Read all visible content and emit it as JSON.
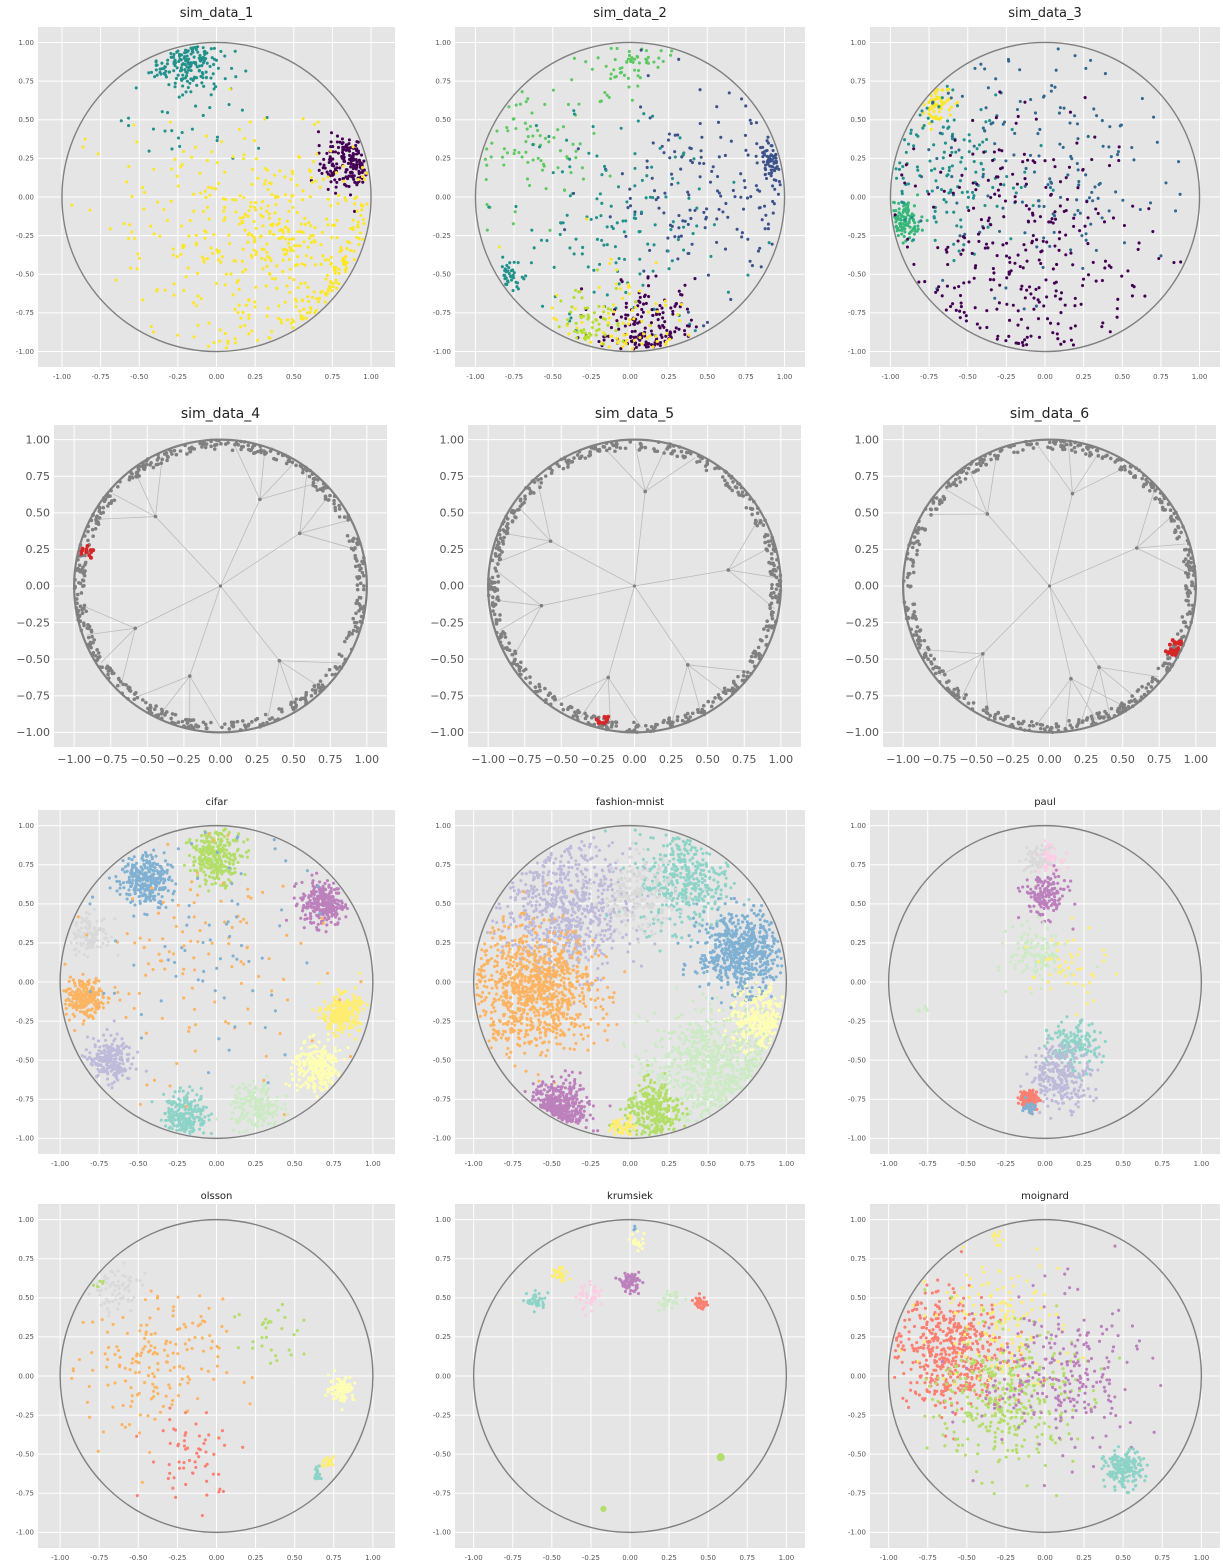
{
  "figure": {
    "background": "#ffffff",
    "panel_background": "#e5e5e5",
    "grid_color": "#ffffff",
    "circle_color": "#808080"
  },
  "chart_data": [
    {
      "title": "sim_data_1",
      "type": "scatter",
      "xlim": [
        -1.0,
        1.0
      ],
      "ylim": [
        -1.0,
        1.0
      ],
      "ticks": [
        "-1.00",
        "-0.75",
        "-0.50",
        "-0.25",
        "0.00",
        "0.25",
        "0.50",
        "0.75",
        "1.00"
      ],
      "grid": true,
      "boundary": "unit circle",
      "series": [
        {
          "color": "#440154",
          "center": [
            0.85,
            0.22
          ],
          "spread": 0.09,
          "count": 180
        },
        {
          "color": "#21918c",
          "center": [
            -0.18,
            0.86
          ],
          "spread": 0.1,
          "count": 160
        },
        {
          "color": "#21918c",
          "center": [
            -0.2,
            0.55
          ],
          "spread": 0.25,
          "count": 40
        },
        {
          "color": "#fde725",
          "center": [
            0.45,
            -0.35
          ],
          "spread": 0.35,
          "count": 420
        },
        {
          "color": "#fde725",
          "center": [
            -0.2,
            -0.1
          ],
          "spread": 0.35,
          "count": 90
        }
      ]
    },
    {
      "title": "sim_data_2",
      "type": "scatter",
      "xlim": [
        -1.0,
        1.0
      ],
      "ylim": [
        -1.0,
        1.0
      ],
      "ticks": [
        "-1.00",
        "-0.75",
        "-0.50",
        "-0.25",
        "0.00",
        "0.25",
        "0.50",
        "0.75",
        "1.00"
      ],
      "grid": true,
      "boundary": "unit circle",
      "series": [
        {
          "color": "#5ec962",
          "center": [
            0.0,
            0.85
          ],
          "spread": 0.12,
          "count": 60
        },
        {
          "color": "#5ec962",
          "center": [
            -0.65,
            0.35
          ],
          "spread": 0.2,
          "count": 80
        },
        {
          "color": "#3b528b",
          "center": [
            0.95,
            0.25
          ],
          "spread": 0.06,
          "count": 60
        },
        {
          "color": "#3b528b",
          "center": [
            0.5,
            0.0
          ],
          "spread": 0.35,
          "count": 160
        },
        {
          "color": "#21918c",
          "center": [
            -0.8,
            -0.52
          ],
          "spread": 0.05,
          "count": 40
        },
        {
          "color": "#21918c",
          "center": [
            -0.1,
            -0.2
          ],
          "spread": 0.35,
          "count": 140
        },
        {
          "color": "#440154",
          "center": [
            0.1,
            -0.85
          ],
          "spread": 0.16,
          "count": 160
        },
        {
          "color": "#fde725",
          "center": [
            0.0,
            -0.85
          ],
          "spread": 0.25,
          "count": 80
        },
        {
          "color": "#b5de2b",
          "center": [
            -0.25,
            -0.8
          ],
          "spread": 0.12,
          "count": 60
        }
      ]
    },
    {
      "title": "sim_data_3",
      "type": "scatter",
      "xlim": [
        -1.0,
        1.0
      ],
      "ylim": [
        -1.0,
        1.0
      ],
      "ticks": [
        "-1.00",
        "-0.75",
        "-0.50",
        "-0.25",
        "0.00",
        "0.25",
        "0.50",
        "0.75",
        "1.00"
      ],
      "grid": true,
      "boundary": "unit circle",
      "series": [
        {
          "color": "#fde725",
          "center": [
            -0.7,
            0.6
          ],
          "spread": 0.06,
          "count": 70
        },
        {
          "color": "#35b779",
          "center": [
            -0.92,
            -0.15
          ],
          "spread": 0.06,
          "count": 110
        },
        {
          "color": "#21918c",
          "center": [
            -0.65,
            0.15
          ],
          "spread": 0.25,
          "count": 140
        },
        {
          "color": "#31688e",
          "center": [
            0.0,
            0.2
          ],
          "spread": 0.4,
          "count": 160
        },
        {
          "color": "#440154",
          "center": [
            -0.1,
            -0.35
          ],
          "spread": 0.4,
          "count": 300
        }
      ]
    },
    {
      "title": "sim_data_4",
      "type": "tree-scatter",
      "xlim": [
        -1.0,
        1.0
      ],
      "ylim": [
        -1.0,
        1.0
      ],
      "ticks": [
        "−1.00",
        "−0.75",
        "−0.50",
        "−0.25",
        "0.00",
        "0.25",
        "0.50",
        "0.75",
        "1.00"
      ],
      "grid": true,
      "boundary": "unit circle",
      "colors": {
        "nodes": "#808080",
        "highlight": "#d62728",
        "edges": "#bbbbbb"
      },
      "highlight": {
        "angle_deg": 165,
        "count": 12
      }
    },
    {
      "title": "sim_data_5",
      "type": "tree-scatter",
      "xlim": [
        -1.0,
        1.0
      ],
      "ylim": [
        -1.0,
        1.0
      ],
      "ticks": [
        "−1.00",
        "−0.75",
        "−0.50",
        "−0.25",
        "0.00",
        "0.25",
        "0.50",
        "0.75",
        "1.00"
      ],
      "grid": true,
      "boundary": "unit circle",
      "colors": {
        "nodes": "#808080",
        "highlight": "#d62728",
        "edges": "#bbbbbb"
      },
      "highlight": {
        "angle_deg": 256,
        "count": 12
      }
    },
    {
      "title": "sim_data_6",
      "type": "tree-scatter",
      "xlim": [
        -1.0,
        1.0
      ],
      "ylim": [
        -1.0,
        1.0
      ],
      "ticks": [
        "−1.00",
        "−0.75",
        "−0.50",
        "−0.25",
        "0.00",
        "0.25",
        "0.50",
        "0.75",
        "1.00"
      ],
      "grid": true,
      "boundary": "unit circle",
      "colors": {
        "nodes": "#808080",
        "highlight": "#d62728",
        "edges": "#bbbbbb"
      },
      "highlight": {
        "angle_deg": 334,
        "count": 30
      }
    },
    {
      "title": "cifar",
      "type": "scatter",
      "xlim": [
        -1.0,
        1.0
      ],
      "ylim": [
        -1.0,
        1.0
      ],
      "ticks": [
        "-1.00",
        "-0.75",
        "-0.50",
        "-0.25",
        "0.00",
        "0.25",
        "0.50",
        "0.75",
        "1.00"
      ],
      "grid": true,
      "boundary": "unit circle",
      "series": [
        {
          "color": "#b3de69",
          "center": [
            0.0,
            0.8
          ],
          "spread": 0.08,
          "count": 300
        },
        {
          "color": "#80b1d3",
          "center": [
            -0.45,
            0.65
          ],
          "spread": 0.08,
          "count": 300
        },
        {
          "color": "#bc80bd",
          "center": [
            0.68,
            0.5
          ],
          "spread": 0.07,
          "count": 280
        },
        {
          "color": "#d9d9d9",
          "center": [
            -0.8,
            0.3
          ],
          "spread": 0.06,
          "count": 120
        },
        {
          "color": "#fdb462",
          "center": [
            -0.85,
            -0.1
          ],
          "spread": 0.06,
          "count": 220
        },
        {
          "color": "#bebada",
          "center": [
            -0.68,
            -0.5
          ],
          "spread": 0.07,
          "count": 220
        },
        {
          "color": "#8dd3c7",
          "center": [
            -0.2,
            -0.85
          ],
          "spread": 0.07,
          "count": 220
        },
        {
          "color": "#ccebc5",
          "center": [
            0.25,
            -0.8
          ],
          "spread": 0.08,
          "count": 200
        },
        {
          "color": "#ffffb3",
          "center": [
            0.65,
            -0.55
          ],
          "spread": 0.08,
          "count": 260
        },
        {
          "color": "#ffed6f",
          "center": [
            0.8,
            -0.2
          ],
          "spread": 0.06,
          "count": 260
        },
        {
          "color": "#fdb462",
          "center": [
            -0.1,
            0.1
          ],
          "spread": 0.4,
          "count": 120
        },
        {
          "color": "#80b1d3",
          "center": [
            -0.1,
            0.2
          ],
          "spread": 0.4,
          "count": 80
        }
      ]
    },
    {
      "title": "fashion-mnist",
      "type": "scatter",
      "xlim": [
        -1.0,
        1.0
      ],
      "ylim": [
        -1.0,
        1.0
      ],
      "ticks": [
        "-1.00",
        "-0.75",
        "-0.50",
        "-0.25",
        "0.00",
        "0.25",
        "0.50",
        "0.75",
        "1.00"
      ],
      "grid": true,
      "boundary": "unit circle",
      "series": [
        {
          "color": "#bebada",
          "center": [
            -0.4,
            0.45
          ],
          "spread": 0.2,
          "count": 700
        },
        {
          "color": "#8dd3c7",
          "center": [
            0.35,
            0.65
          ],
          "spread": 0.15,
          "count": 380
        },
        {
          "color": "#d9d9d9",
          "center": [
            0.05,
            0.55
          ],
          "spread": 0.12,
          "count": 200
        },
        {
          "color": "#fdb462",
          "center": [
            -0.6,
            -0.05
          ],
          "spread": 0.19,
          "count": 950
        },
        {
          "color": "#80b1d3",
          "center": [
            0.7,
            0.2
          ],
          "spread": 0.13,
          "count": 600
        },
        {
          "color": "#ffffb3",
          "center": [
            0.82,
            -0.25
          ],
          "spread": 0.1,
          "count": 300
        },
        {
          "color": "#ccebc5",
          "center": [
            0.5,
            -0.55
          ],
          "spread": 0.18,
          "count": 700
        },
        {
          "color": "#bc80bd",
          "center": [
            -0.45,
            -0.8
          ],
          "spread": 0.09,
          "count": 380
        },
        {
          "color": "#b3de69",
          "center": [
            0.15,
            -0.83
          ],
          "spread": 0.09,
          "count": 300
        },
        {
          "color": "#ffed6f",
          "center": [
            -0.05,
            -0.93
          ],
          "spread": 0.04,
          "count": 50
        }
      ]
    },
    {
      "title": "paul",
      "type": "scatter",
      "xlim": [
        -1.0,
        1.0
      ],
      "ylim": [
        -1.0,
        1.0
      ],
      "ticks": [
        "-1.00",
        "-0.75",
        "-0.50",
        "-0.25",
        "0.00",
        "0.25",
        "0.50",
        "0.75",
        "1.00"
      ],
      "grid": true,
      "boundary": "unit circle",
      "series": [
        {
          "color": "#fccde5",
          "center": [
            0.02,
            0.8
          ],
          "spread": 0.04,
          "count": 60
        },
        {
          "color": "#d9d9d9",
          "center": [
            -0.05,
            0.78
          ],
          "spread": 0.04,
          "count": 60
        },
        {
          "color": "#bc80bd",
          "center": [
            0.0,
            0.55
          ],
          "spread": 0.07,
          "count": 160
        },
        {
          "color": "#ccebc5",
          "center": [
            -0.05,
            0.18
          ],
          "spread": 0.09,
          "count": 120
        },
        {
          "color": "#ccebc5",
          "center": [
            -0.78,
            -0.17
          ],
          "spread": 0.02,
          "count": 8
        },
        {
          "color": "#ffed6f",
          "center": [
            0.15,
            0.08
          ],
          "spread": 0.12,
          "count": 50
        },
        {
          "color": "#8dd3c7",
          "center": [
            0.18,
            -0.42
          ],
          "spread": 0.08,
          "count": 160
        },
        {
          "color": "#bebada",
          "center": [
            0.1,
            -0.6
          ],
          "spread": 0.1,
          "count": 260
        },
        {
          "color": "#fb8072",
          "center": [
            -0.1,
            -0.75
          ],
          "spread": 0.03,
          "count": 120
        },
        {
          "color": "#80b1d3",
          "center": [
            -0.1,
            -0.8
          ],
          "spread": 0.02,
          "count": 30
        }
      ]
    },
    {
      "title": "olsson",
      "type": "scatter",
      "xlim": [
        -1.0,
        1.0
      ],
      "ylim": [
        -1.0,
        1.0
      ],
      "ticks": [
        "-1.00",
        "-0.75",
        "-0.50",
        "-0.25",
        "0.00",
        "0.25",
        "0.50",
        "0.75",
        "1.00"
      ],
      "grid": true,
      "boundary": "unit circle",
      "series": [
        {
          "color": "#d9d9d9",
          "center": [
            -0.65,
            0.55
          ],
          "spread": 0.08,
          "count": 70
        },
        {
          "color": "#b3de69",
          "center": [
            -0.75,
            0.6
          ],
          "spread": 0.03,
          "count": 5
        },
        {
          "color": "#fdb462",
          "center": [
            -0.4,
            0.05
          ],
          "spread": 0.22,
          "count": 170
        },
        {
          "color": "#fb8072",
          "center": [
            -0.15,
            -0.5
          ],
          "spread": 0.15,
          "count": 60
        },
        {
          "color": "#b3de69",
          "center": [
            0.4,
            0.25
          ],
          "spread": 0.15,
          "count": 30
        },
        {
          "color": "#ffffb3",
          "center": [
            0.8,
            -0.08
          ],
          "spread": 0.04,
          "count": 90
        },
        {
          "color": "#ffed6f",
          "center": [
            0.72,
            -0.55
          ],
          "spread": 0.02,
          "count": 20
        },
        {
          "color": "#8dd3c7",
          "center": [
            0.65,
            -0.63
          ],
          "spread": 0.02,
          "count": 20
        }
      ]
    },
    {
      "title": "krumsiek",
      "type": "trajectory",
      "xlim": [
        -1.0,
        1.0
      ],
      "ylim": [
        -1.0,
        1.0
      ],
      "ticks": [
        "-1.00",
        "-0.75",
        "-0.50",
        "-0.25",
        "0.00",
        "0.25",
        "0.50",
        "0.75",
        "1.00"
      ],
      "grid": true,
      "boundary": "unit circle",
      "series": [
        {
          "color": "#8dd3c7",
          "center": [
            -0.6,
            0.48
          ],
          "spread": 0.03,
          "count": 40
        },
        {
          "color": "#ffed6f",
          "center": [
            -0.45,
            0.65
          ],
          "spread": 0.03,
          "count": 30
        },
        {
          "color": "#fccde5",
          "center": [
            -0.25,
            0.5
          ],
          "spread": 0.04,
          "count": 40
        },
        {
          "color": "#bc80bd",
          "center": [
            0.0,
            0.6
          ],
          "spread": 0.03,
          "count": 80
        },
        {
          "color": "#ffffb3",
          "center": [
            0.05,
            0.85
          ],
          "spread": 0.03,
          "count": 20
        },
        {
          "color": "#ccebc5",
          "center": [
            0.25,
            0.48
          ],
          "spread": 0.03,
          "count": 40
        },
        {
          "color": "#fb8072",
          "center": [
            0.45,
            0.47
          ],
          "spread": 0.02,
          "count": 40
        },
        {
          "color": "#80b1d3",
          "center": [
            0.02,
            0.95
          ],
          "spread": 0.01,
          "count": 3
        }
      ],
      "singletons": [
        {
          "color": "#b3de69",
          "x": 0.58,
          "y": -0.52,
          "size": 2.6
        },
        {
          "color": "#b3de69",
          "x": -0.17,
          "y": -0.85,
          "size": 2.0
        }
      ]
    },
    {
      "title": "moignard",
      "type": "scatter",
      "xlim": [
        -1.0,
        1.0
      ],
      "ylim": [
        -1.0,
        1.0
      ],
      "ticks": [
        "-1.00",
        "-0.75",
        "-0.50",
        "-0.25",
        "0.00",
        "0.25",
        "0.50",
        "0.75",
        "1.00"
      ],
      "grid": true,
      "boundary": "unit circle",
      "series": [
        {
          "color": "#fb8072",
          "center": [
            -0.6,
            0.15
          ],
          "spread": 0.18,
          "count": 500
        },
        {
          "color": "#ffed6f",
          "center": [
            -0.3,
            0.35
          ],
          "spread": 0.2,
          "count": 150
        },
        {
          "color": "#b3de69",
          "center": [
            -0.25,
            -0.15
          ],
          "spread": 0.22,
          "count": 350
        },
        {
          "color": "#bc80bd",
          "center": [
            0.1,
            0.0
          ],
          "spread": 0.25,
          "count": 250
        },
        {
          "color": "#8dd3c7",
          "center": [
            0.5,
            -0.6
          ],
          "spread": 0.06,
          "count": 180
        },
        {
          "color": "#ffed6f",
          "center": [
            -0.3,
            0.88
          ],
          "spread": 0.02,
          "count": 10
        }
      ]
    }
  ]
}
